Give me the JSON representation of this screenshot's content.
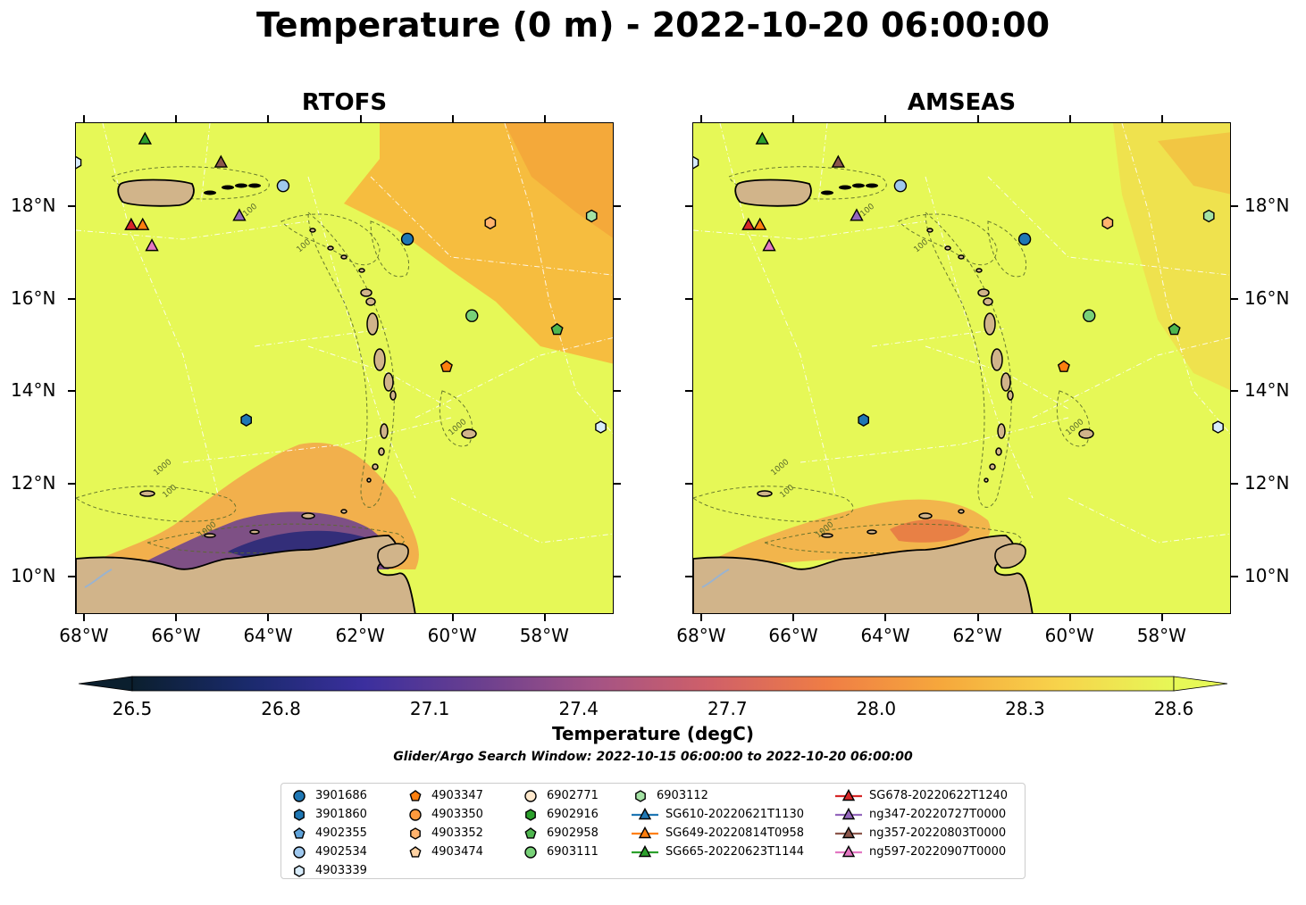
{
  "title": "Temperature (0 m) - 2022-10-20 06:00:00",
  "panels": [
    {
      "title": "RTOFS"
    },
    {
      "title": "AMSEAS"
    }
  ],
  "axes": {
    "lon_ticks": [
      "68°W",
      "66°W",
      "64°W",
      "62°W",
      "60°W",
      "58°W"
    ],
    "lat_ticks": [
      "18°N",
      "16°N",
      "14°N",
      "12°N",
      "10°N"
    ]
  },
  "colorbar": {
    "label": "Temperature (degC)",
    "ticks": [
      "26.5",
      "26.8",
      "27.1",
      "27.4",
      "27.7",
      "28.0",
      "28.3",
      "28.6"
    ],
    "min": 26.5,
    "max": 28.6,
    "extend": "both",
    "stops": [
      "#0b1f2e",
      "#1a2a6c",
      "#3b2f9e",
      "#6a3f8f",
      "#a45385",
      "#d06068",
      "#ef7d45",
      "#f6a83c",
      "#f7d34b",
      "#e6f857"
    ]
  },
  "contour_labels": [
    "100",
    "1000"
  ],
  "search_window": "Glider/Argo Search Window: 2022-10-15 06:00:00 to 2022-10-20 06:00:00",
  "legend": {
    "columns": [
      [
        {
          "label": "3901686",
          "marker": "circle",
          "color": "#1f77b4"
        },
        {
          "label": "3901860",
          "marker": "hexagon",
          "color": "#1f77b4"
        },
        {
          "label": "4902355",
          "marker": "pentagon",
          "color": "#5fa2d9"
        },
        {
          "label": "4902534",
          "marker": "circle",
          "color": "#9fc8ee"
        },
        {
          "label": "4903339",
          "marker": "hexagon",
          "color": "#d8ecfb"
        }
      ],
      [
        {
          "label": "4903347",
          "marker": "pentagon",
          "color": "#ff7f0e"
        },
        {
          "label": "4903350",
          "marker": "circle",
          "color": "#ff9a3d"
        },
        {
          "label": "4903352",
          "marker": "hexagon",
          "color": "#ffb36e"
        },
        {
          "label": "4903474",
          "marker": "pentagon",
          "color": "#ffd2a3"
        }
      ],
      [
        {
          "label": "6902771",
          "marker": "circle",
          "color": "#ffe8cc"
        },
        {
          "label": "6902916",
          "marker": "hexagon",
          "color": "#2ca02c"
        },
        {
          "label": "6902958",
          "marker": "pentagon",
          "color": "#4fb64f"
        },
        {
          "label": "6903111",
          "marker": "circle",
          "color": "#78d178"
        }
      ],
      [
        {
          "label": "6903112",
          "marker": "hexagon",
          "color": "#a4e2a4"
        },
        {
          "label": "SG610-20220621T1130",
          "marker": "triangle-line",
          "color": "#1f77b4"
        },
        {
          "label": "SG649-20220814T0958",
          "marker": "triangle-line",
          "color": "#ff7f0e"
        },
        {
          "label": "SG665-20220623T1144",
          "marker": "triangle-line",
          "color": "#2ca02c"
        }
      ],
      [
        {
          "label": "SG678-20220622T1240",
          "marker": "triangle-line",
          "color": "#d62728"
        },
        {
          "label": "ng347-20220727T0000",
          "marker": "triangle-line",
          "color": "#9467bd"
        },
        {
          "label": "ng357-20220803T0000",
          "marker": "triangle-line",
          "color": "#8c564b"
        },
        {
          "label": "ng597-20220907T0000",
          "marker": "triangle-line",
          "color": "#e377c2"
        }
      ]
    ]
  },
  "map_extent": {
    "lon": [
      -68.2,
      -56.5
    ],
    "lat": [
      9.2,
      19.8
    ]
  },
  "markers": [
    {
      "label": "3901686",
      "lon": -61.0,
      "lat": 17.3
    },
    {
      "label": "3901860",
      "lon": -64.5,
      "lat": 13.4
    },
    {
      "label": "4902534",
      "lon": -63.7,
      "lat": 18.45
    },
    {
      "label": "4903339",
      "lon": -56.8,
      "lat": 13.25
    },
    {
      "label": "4903339",
      "lon": -68.2,
      "lat": 18.95
    },
    {
      "label": "4903347",
      "lon": -60.15,
      "lat": 14.55
    },
    {
      "label": "4903352",
      "lon": -59.2,
      "lat": 17.65
    },
    {
      "label": "6902958",
      "lon": -57.75,
      "lat": 15.35
    },
    {
      "label": "6903111",
      "lon": -59.6,
      "lat": 15.65
    },
    {
      "label": "6903112",
      "lon": -57.0,
      "lat": 17.8
    },
    {
      "label": "SG665-20220623T1144",
      "lon": -66.7,
      "lat": 19.45
    },
    {
      "label": "SG678-20220622T1240",
      "lon": -67.0,
      "lat": 17.6
    },
    {
      "label": "SG649-20220814T0958",
      "lon": -66.75,
      "lat": 17.6
    },
    {
      "label": "ng357-20220803T0000",
      "lon": -65.05,
      "lat": 18.95
    },
    {
      "label": "ng347-20220727T0000",
      "lon": -64.65,
      "lat": 17.8
    },
    {
      "label": "ng597-20220907T0000",
      "lon": -66.55,
      "lat": 17.15
    }
  ]
}
